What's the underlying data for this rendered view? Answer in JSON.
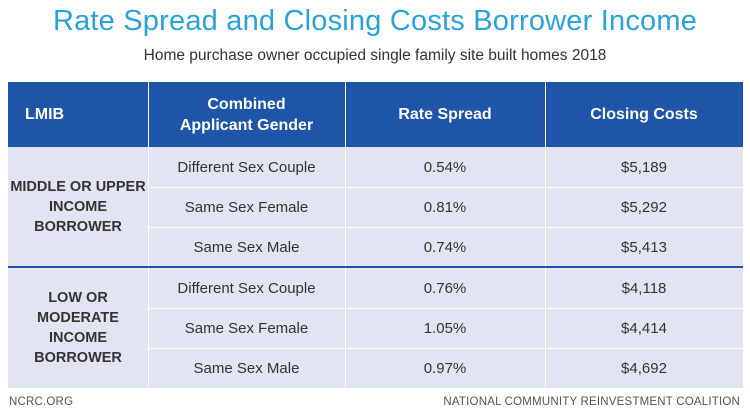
{
  "title": "Rate Spread and Closing Costs Borrower Income",
  "subtitle": "Home purchase owner occupied single family site built homes 2018",
  "table": {
    "headers": [
      "LMIB",
      "Combined\nApplicant Gender",
      "Rate Spread",
      "Closing Costs"
    ],
    "groups": [
      {
        "label": "MIDDLE OR UPPER\nINCOME BORROWER",
        "rows": [
          {
            "gender": "Different Sex Couple",
            "rate_spread": "0.54%",
            "closing_costs": "$5,189"
          },
          {
            "gender": "Same Sex Female",
            "rate_spread": "0.81%",
            "closing_costs": "$5,292"
          },
          {
            "gender": "Same Sex Male",
            "rate_spread": "0.74%",
            "closing_costs": "$5,413"
          }
        ]
      },
      {
        "label": "LOW OR MODERATE\nINCOME BORROWER",
        "rows": [
          {
            "gender": "Different Sex Couple",
            "rate_spread": "0.76%",
            "closing_costs": "$4,118"
          },
          {
            "gender": "Same Sex Female",
            "rate_spread": "1.05%",
            "closing_costs": "$4,414"
          },
          {
            "gender": "Same Sex Male",
            "rate_spread": "0.97%",
            "closing_costs": "$4,692"
          }
        ]
      }
    ]
  },
  "footer": {
    "left": "NCRC.ORG",
    "right": "NATIONAL COMMUNITY REINVESTMENT COALITION"
  },
  "colors": {
    "title": "#2aa3dd",
    "header_bg": "#1f55a8",
    "row_bg": "#e1e4f1",
    "text": "#333333"
  }
}
